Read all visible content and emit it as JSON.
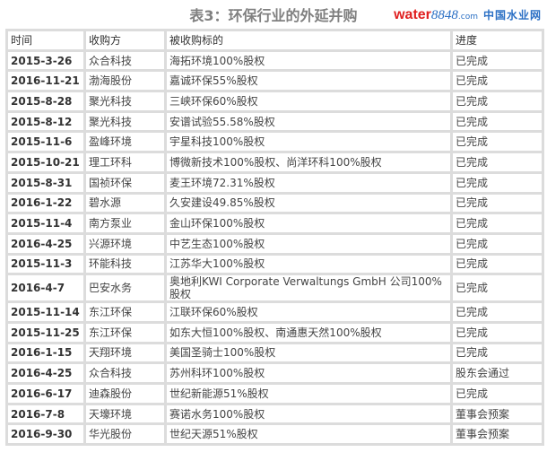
{
  "title": "表3：环保行业的外延并购",
  "columns": [
    "时间",
    "收购方",
    "被收购标的",
    "进度"
  ],
  "rows": [
    [
      "2015-3-26",
      "众合科技",
      "海拓环境100%股权",
      "已完成"
    ],
    [
      "2016-11-21",
      "渤海股份",
      "嘉诚环保55%股权",
      "已完成"
    ],
    [
      "2015-8-28",
      "聚光科技",
      "三峡环保60%股权",
      "已完成"
    ],
    [
      "2015-8-12",
      "聚光科技",
      "安谱试验55.58%股权",
      "已完成"
    ],
    [
      "2015-11-6",
      "盈峰环境",
      "宇星科技100%股权",
      "已完成"
    ],
    [
      "2015-10-21",
      "理工环科",
      "博微新技术100%股权、尚洋环科100%股权",
      "已完成"
    ],
    [
      "2015-8-31",
      "国祯环保",
      "麦王环境72.31%股权",
      "已完成"
    ],
    [
      "2016-1-22",
      "碧水源",
      "久安建设49.85%股权",
      "已完成"
    ],
    [
      "2015-11-4",
      "南方泵业",
      "金山环保100%股权",
      "已完成"
    ],
    [
      "2016-4-25",
      "兴源环境",
      "中艺生态100%股权",
      "已完成"
    ],
    [
      "2015-11-3",
      "环能科技",
      "江苏华大100%股权",
      "已完成"
    ],
    [
      "2016-4-7",
      "巴安水务",
      "奥地利KWI Corporate Verwaltungs GmbH 公司100%股权",
      "已完成"
    ],
    [
      "2015-11-14",
      "东江环保",
      "江联环保60%股权",
      "已完成"
    ],
    [
      "2015-11-25",
      "东江环保",
      "如东大恒100%股权、南通惠天然100%股权",
      "已完成"
    ],
    [
      "2016-1-15",
      "天翔环境",
      "美国圣骑士100%股权",
      "已完成"
    ],
    [
      "2016-4-25",
      "众合科技",
      "苏州科环100%股权",
      "股东会通过"
    ],
    [
      "2016-6-17",
      "迪森股份",
      "世纪新能源51%股权",
      "已完成"
    ],
    [
      "2016-7-8",
      "天壕环境",
      "赛诺水务100%股权",
      "董事会预案"
    ],
    [
      "2016-9-30",
      "华光股份",
      "世纪天源51%股权",
      "董事会预案"
    ]
  ],
  "watermark": {
    "word": "water",
    "num": "8848",
    ".com": ".com",
    "cn": "中国水业网"
  }
}
